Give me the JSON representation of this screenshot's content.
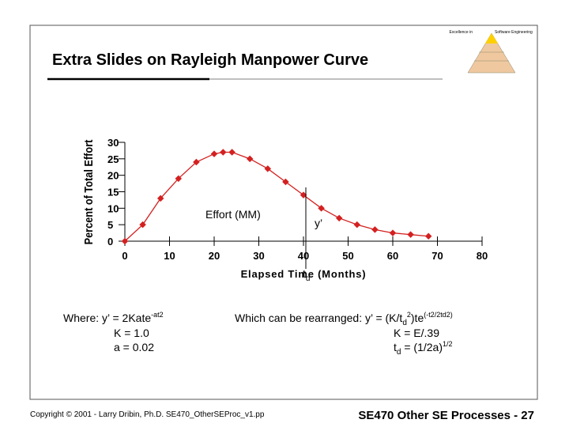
{
  "header": {
    "title": "Extra Slides on Rayleigh Manpower Curve",
    "logo_top_left": "Excellence in",
    "logo_top_right": "Software Engineering"
  },
  "chart_data": {
    "type": "line",
    "x": [
      0,
      4,
      8,
      12,
      16,
      20,
      22,
      24,
      28,
      32,
      36,
      40,
      44,
      48,
      52,
      56,
      60,
      64,
      68
    ],
    "series": [
      {
        "name": "Effort (MM)",
        "color": "#d42020",
        "values": [
          0,
          5,
          13,
          19,
          24,
          26.5,
          27,
          27,
          25,
          22,
          18,
          14,
          10,
          7,
          5,
          3.5,
          2.5,
          2,
          1.5
        ]
      }
    ],
    "xlim": [
      0,
      80
    ],
    "xticks": [
      0,
      10,
      20,
      30,
      40,
      50,
      60,
      70,
      80
    ],
    "ylim": [
      0,
      30
    ],
    "yticks": [
      0,
      5,
      10,
      15,
      20,
      25,
      30
    ],
    "xlabel": "Elapsed Time (Months)",
    "ylabel": "Percent of Total Effort",
    "annotations": [
      "y’"
    ],
    "marker_line": {
      "x": 40,
      "label": "t",
      "sub": "d"
    }
  },
  "formulas": {
    "left": [
      [
        {
          "text": "Where:  y’ = 2Kate"
        },
        {
          "text": "-at2",
          "style": "sup"
        }
      ],
      [
        {
          "text": "K = 1.0"
        }
      ],
      [
        {
          "text": "a  = 0.02"
        }
      ]
    ],
    "right": [
      [
        {
          "text": "Which can be rearranged: y’ = (K/t"
        },
        {
          "text": "d",
          "style": "sub"
        },
        {
          "text": "2",
          "style": "sup"
        },
        {
          "text": ")te"
        },
        {
          "text": "(-t2/2td2)",
          "style": "sup"
        }
      ],
      [
        {
          "text": "K =  E/.39"
        }
      ],
      [
        {
          "text": "t"
        },
        {
          "text": "d",
          "style": "sub"
        },
        {
          "text": " = (1/2a)"
        },
        {
          "text": "1/2",
          "style": "sup"
        }
      ]
    ]
  },
  "footer": {
    "copyright": "Copyright © 2001 - Larry Dribin, Ph.D. SE470_OtherSEProc_v1.pp",
    "course": "SE470 Other SE Processes - 27"
  }
}
